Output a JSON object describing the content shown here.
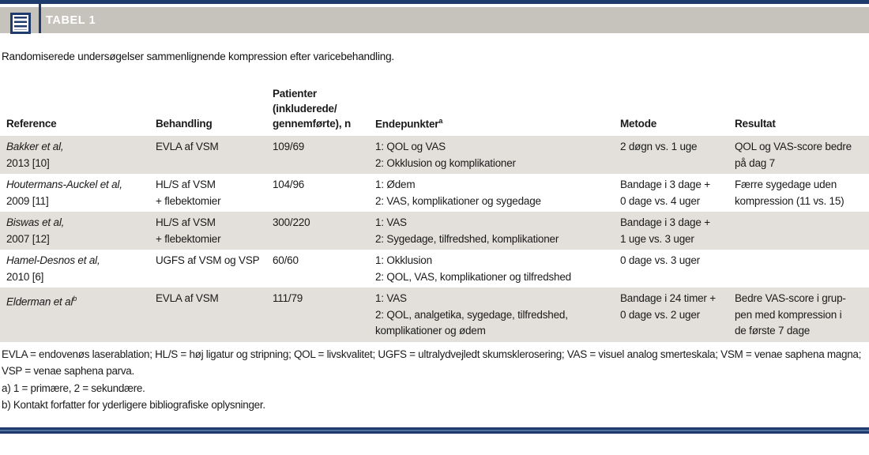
{
  "accent": {
    "navy": "#1f3b6d",
    "bar_gray": "#c6c2bc",
    "row_shade": "#e3e0db",
    "stripe_blue": "#52719f"
  },
  "header": {
    "label": "TABEL 1",
    "subtitle": "Randomiserede undersøgelser sammenlignende kompression efter varicebehandling."
  },
  "table": {
    "columns": {
      "reference": "Reference",
      "behandling": "Behandling",
      "patienter_lines": [
        "Patienter",
        "(inkluderede/",
        "gennemførte), n"
      ],
      "endepunkter": "Endepunkter",
      "endepunkter_sup": "a",
      "metode": "Metode",
      "resultat": "Resultat"
    },
    "rows": [
      {
        "ref_name": "Bakker et al,",
        "ref_year": "2013 [10]",
        "behandling": [
          "EVLA af VSM"
        ],
        "patienter": "109/69",
        "endepunkter": [
          "1: QOL og VAS",
          "2: Okklusion og komplikationer"
        ],
        "metode": [
          "2 døgn vs. 1 uge"
        ],
        "resultat": [
          "QOL og VAS-score bedre",
          "på dag 7"
        ],
        "shaded": true
      },
      {
        "ref_name": "Houtermans-Auckel et al,",
        "ref_year": "2009 [11]",
        "behandling": [
          "HL/S af VSM",
          "+ flebektomier"
        ],
        "patienter": "104/96",
        "endepunkter": [
          "1: Ødem",
          "2: VAS, komplikationer og sygedage"
        ],
        "metode": [
          "Bandage i 3 dage +",
          "0 dage vs. 4 uger"
        ],
        "resultat": [
          "Færre sygedage uden",
          "kompression (11 vs. 15)"
        ],
        "shaded": false
      },
      {
        "ref_name": "Biswas et al,",
        "ref_year": "2007 [12]",
        "behandling": [
          "HL/S af VSM",
          "+ flebektomier"
        ],
        "patienter": "300/220",
        "endepunkter": [
          "1: VAS",
          "2: Sygedage, tilfredshed, komplikationer"
        ],
        "metode": [
          "Bandage i 3 dage +",
          "1 uge vs. 3 uger"
        ],
        "resultat": [],
        "shaded": true
      },
      {
        "ref_name": "Hamel-Desnos et al,",
        "ref_year": "2010 [6]",
        "behandling": [
          "UGFS af VSM og VSP"
        ],
        "patienter": "60/60",
        "endepunkter": [
          "1: Okklusion",
          "2: QOL, VAS, komplikationer og tilfredshed"
        ],
        "metode": [
          "0 dage vs. 3 uger"
        ],
        "resultat": [],
        "shaded": false
      },
      {
        "ref_name": "Elderman et al",
        "ref_sup": "b",
        "ref_year": "",
        "behandling": [
          "EVLA af VSM"
        ],
        "patienter": "111/79",
        "endepunkter": [
          "1: VAS",
          "2: QOL, analgetika, sygedage, tilfredshed,",
          "komplikationer og ødem"
        ],
        "metode": [
          "Bandage i 24 timer +",
          "0 dage vs. 2 uger"
        ],
        "resultat": [
          "Bedre VAS-score i grup-",
          "pen med kompression i",
          "de første 7 dage"
        ],
        "shaded": true
      }
    ]
  },
  "footnotes": [
    "EVLA = endovenøs laserablation; HL/S = høj ligatur og stripning; QOL = livskvalitet; UGFS = ultralydvejledt skumsklerosering; VAS = visuel analog smerteskala; VSM = venae saphena magna; VSP = venae saphena parva.",
    "a) 1 = primære, 2 = sekundære.",
    "b) Kontakt forfatter for yderligere bibliografiske oplysninger."
  ]
}
